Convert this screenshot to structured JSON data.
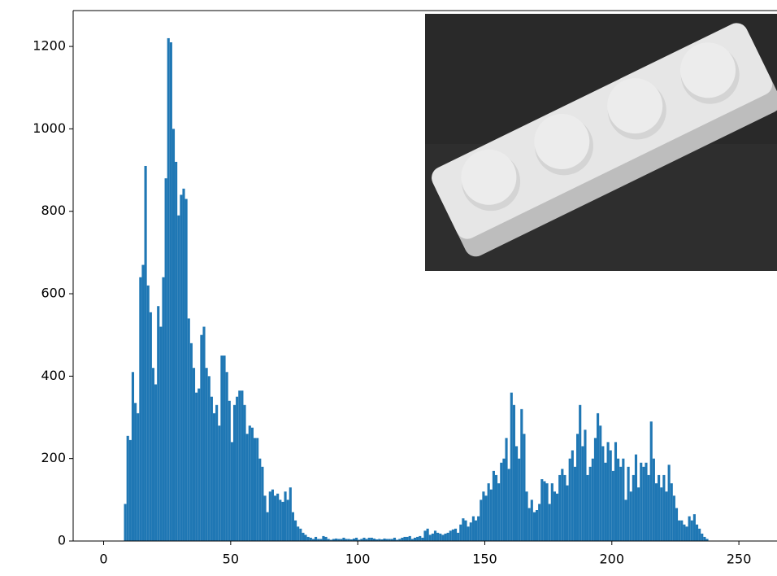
{
  "chart_data": {
    "type": "histogram",
    "color": "#1f77b4",
    "bins": [
      0,
      1,
      2,
      3,
      4,
      5,
      6,
      7,
      8,
      9,
      10,
      11,
      12,
      13,
      14,
      15,
      16,
      17,
      18,
      19,
      20,
      21,
      22,
      23,
      24,
      25,
      26,
      27,
      28,
      29,
      30,
      31,
      32,
      33,
      34,
      35,
      36,
      37,
      38,
      39,
      40,
      41,
      42,
      43,
      44,
      45,
      46,
      47,
      48,
      49,
      50,
      51,
      52,
      53,
      54,
      55,
      56,
      57,
      58,
      59,
      60,
      61,
      62,
      63,
      64,
      65,
      66,
      67,
      68,
      69,
      70,
      71,
      72,
      73,
      74,
      75,
      76,
      77,
      78,
      79,
      80,
      81,
      82,
      83,
      84,
      85,
      86,
      87,
      88,
      89,
      90,
      91,
      92,
      93,
      94,
      95,
      96,
      97,
      98,
      99,
      100,
      101,
      102,
      103,
      104,
      105,
      106,
      107,
      108,
      109,
      110,
      111,
      112,
      113,
      114,
      115,
      116,
      117,
      118,
      119,
      120,
      121,
      122,
      123,
      124,
      125,
      126,
      127,
      128,
      129,
      130,
      131,
      132,
      133,
      134,
      135,
      136,
      137,
      138,
      139,
      140,
      141,
      142,
      143,
      144,
      145,
      146,
      147,
      148,
      149,
      150,
      151,
      152,
      153,
      154,
      155,
      156,
      157,
      158,
      159,
      160,
      161,
      162,
      163,
      164,
      165,
      166,
      167,
      168,
      169,
      170,
      171,
      172,
      173,
      174,
      175,
      176,
      177,
      178,
      179,
      180,
      181,
      182,
      183,
      184,
      185,
      186,
      187,
      188,
      189,
      190,
      191,
      192,
      193,
      194,
      195,
      196,
      197,
      198,
      199,
      200,
      201,
      202,
      203,
      204,
      205,
      206,
      207,
      208,
      209,
      210,
      211,
      212,
      213,
      214,
      215,
      216,
      217,
      218,
      219,
      220,
      221,
      222,
      223,
      224,
      225,
      226,
      227,
      228,
      229,
      230,
      231,
      232,
      233,
      234,
      235,
      236,
      237,
      238,
      239,
      240,
      241,
      242,
      243,
      244,
      245,
      246,
      247,
      248,
      249,
      250,
      251,
      252,
      253,
      254,
      255,
      256
    ],
    "values": [
      0,
      0,
      0,
      0,
      0,
      0,
      0,
      0,
      90,
      255,
      245,
      410,
      335,
      310,
      640,
      670,
      910,
      620,
      555,
      420,
      380,
      570,
      520,
      640,
      880,
      1220,
      1210,
      1000,
      920,
      790,
      840,
      855,
      830,
      540,
      480,
      420,
      360,
      370,
      500,
      520,
      420,
      400,
      350,
      310,
      330,
      280,
      450,
      450,
      410,
      340,
      240,
      330,
      350,
      365,
      365,
      330,
      260,
      280,
      275,
      250,
      250,
      200,
      180,
      110,
      70,
      120,
      125,
      110,
      115,
      100,
      95,
      120,
      100,
      130,
      70,
      50,
      35,
      30,
      20,
      15,
      10,
      8,
      5,
      10,
      5,
      5,
      12,
      10,
      5,
      3,
      5,
      6,
      5,
      5,
      8,
      5,
      5,
      4,
      6,
      8,
      3,
      5,
      8,
      5,
      8,
      8,
      6,
      4,
      5,
      4,
      6,
      5,
      5,
      5,
      8,
      3,
      5,
      8,
      10,
      10,
      12,
      5,
      8,
      10,
      12,
      8,
      25,
      30,
      15,
      18,
      25,
      20,
      18,
      15,
      18,
      20,
      25,
      28,
      30,
      20,
      40,
      55,
      50,
      35,
      45,
      60,
      50,
      60,
      100,
      120,
      110,
      140,
      125,
      170,
      160,
      140,
      190,
      200,
      250,
      175,
      360,
      330,
      230,
      200,
      320,
      260,
      120,
      80,
      100,
      70,
      75,
      90,
      150,
      145,
      140,
      90,
      140,
      120,
      115,
      160,
      175,
      160,
      135,
      200,
      220,
      180,
      260,
      330,
      230,
      270,
      160,
      180,
      200,
      250,
      310,
      280,
      230,
      190,
      240,
      220,
      170,
      240,
      200,
      180,
      200,
      100,
      180,
      120,
      160,
      210,
      130,
      190,
      180,
      190,
      160,
      290,
      200,
      140,
      160,
      130,
      160,
      120,
      185,
      140,
      110,
      80,
      50,
      50,
      40,
      35,
      60,
      50,
      65,
      40,
      30,
      18,
      10,
      5,
      0,
      0,
      0,
      0,
      0,
      0,
      0,
      0,
      0,
      0,
      0,
      0,
      0,
      0,
      0,
      0,
      0,
      0
    ],
    "xlim": [
      -12,
      265
    ],
    "ylim": [
      0,
      1287
    ],
    "xticks": [
      0,
      50,
      100,
      150,
      200,
      250
    ],
    "yticks": [
      0,
      200,
      400,
      600,
      800,
      1000,
      1200
    ]
  }
}
